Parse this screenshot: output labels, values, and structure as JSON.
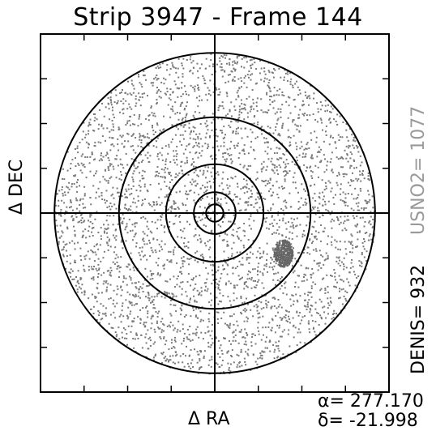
{
  "title": "Strip 3947 - Frame 144",
  "xlabel": "Δ RA",
  "ylabel": "Δ DEC",
  "alpha_label": "α= 277.170",
  "delta_label": "δ= -21.998",
  "usno_label": "USNO2= 1077",
  "denis_label": "DENIS= 932",
  "colors": {
    "frame": "#000000",
    "stars": "#7a7a7a",
    "circles": "#000000",
    "usno_text": "#9a9a9a"
  },
  "chart_data": {
    "type": "scatter",
    "title": "Strip 3947 - Frame 144",
    "xlabel": "Δ RA",
    "ylabel": "Δ DEC",
    "xlim": [
      -1,
      1
    ],
    "ylim": [
      -1,
      1
    ],
    "grid": false,
    "center": [
      0,
      0
    ],
    "circle_radii": [
      0.05,
      0.12,
      0.28,
      0.55,
      0.92
    ],
    "field_radius": 0.92,
    "star_density_note": "dense",
    "cluster": {
      "x": 0.39,
      "y": -0.22,
      "radius": 0.07
    },
    "series": [
      {
        "name": "DENIS",
        "count": 932
      },
      {
        "name": "USNO2",
        "count": 1077
      }
    ]
  }
}
